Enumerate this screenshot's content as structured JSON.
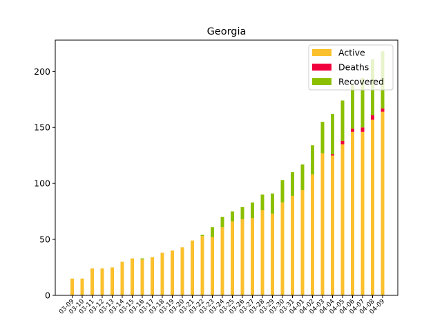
{
  "chart_data": {
    "type": "bar",
    "stacked": true,
    "title": "Georgia",
    "xlabel": "",
    "ylabel": "",
    "ylim": [
      0,
      228
    ],
    "yticks": [
      0,
      50,
      100,
      150,
      200
    ],
    "legend_position": "top-right",
    "grid": false,
    "categories": [
      "03-09",
      "03-10",
      "03-11",
      "03-12",
      "03-13",
      "03-14",
      "03-15",
      "03-16",
      "03-17",
      "03-18",
      "03-19",
      "03-20",
      "03-21",
      "03-22",
      "03-23",
      "03-24",
      "03-25",
      "03-26",
      "03-27",
      "03-28",
      "03-29",
      "03-30",
      "03-31",
      "04-01",
      "04-02",
      "04-03",
      "04-04",
      "04-05",
      "04-06",
      "04-07",
      "04-08",
      "04-09"
    ],
    "series": [
      {
        "name": "Active",
        "color": "#fbc02d",
        "values": [
          15,
          15,
          24,
          24,
          25,
          30,
          33,
          32,
          34,
          38,
          40,
          43,
          49,
          53,
          52,
          61,
          66,
          68,
          69,
          76,
          73,
          83,
          89,
          94,
          108,
          127,
          125,
          135,
          146,
          146,
          157,
          164
        ]
      },
      {
        "name": "Deaths",
        "color": "#f0003c",
        "values": [
          0,
          0,
          0,
          0,
          0,
          0,
          0,
          0,
          0,
          0,
          0,
          0,
          0,
          0,
          0,
          0,
          0,
          0,
          0,
          0,
          0,
          0,
          0,
          0,
          0,
          0,
          1,
          3,
          3,
          4,
          4,
          3
        ]
      },
      {
        "name": "Recovered",
        "color": "#8bc000",
        "values": [
          0,
          0,
          0,
          0,
          0,
          0,
          0,
          1,
          0,
          0,
          0,
          0,
          0,
          1,
          9,
          9,
          9,
          11,
          14,
          14,
          18,
          20,
          21,
          23,
          26,
          28,
          36,
          36,
          39,
          44,
          50,
          51
        ]
      }
    ]
  }
}
